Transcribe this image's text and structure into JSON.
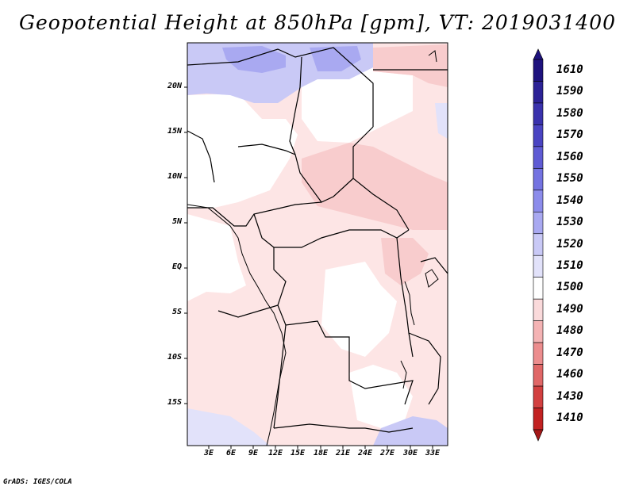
{
  "title": "Geopotential Height at 850hPa [gpm], VT: 2019031400",
  "footer": "GrADS: IGES/COLA",
  "map": {
    "lat_labels": [
      "20N",
      "15N",
      "10N",
      "5N",
      "EQ",
      "5S",
      "10S",
      "15S"
    ],
    "lon_labels": [
      "3E",
      "6E",
      "9E",
      "12E",
      "15E",
      "18E",
      "21E",
      "24E",
      "27E",
      "30E",
      "33E"
    ]
  },
  "colorbar": {
    "levels": [
      "1610",
      "1590",
      "1580",
      "1570",
      "1560",
      "1550",
      "1540",
      "1530",
      "1520",
      "1510",
      "1500",
      "1490",
      "1480",
      "1470",
      "1460",
      "1430",
      "1410"
    ],
    "colors": {
      "top_arrow": "#1e127e",
      "bands": [
        "#1e127e",
        "#2c2296",
        "#3a32ad",
        "#4a44c2",
        "#5f5bd4",
        "#7473e1",
        "#8c8ceb",
        "#a9a9f1",
        "#c9c9f6",
        "#e2e2fa",
        "#ffffff",
        "#fadadb",
        "#f4b3b4",
        "#ec8d8e",
        "#e06767",
        "#d24040",
        "#c22222"
      ],
      "bottom_arrow": "#a51818"
    }
  },
  "fills": {
    "blue_strong": "#a9a9f1",
    "blue_light": "#c9c9f6",
    "blue_pale": "#e2e2fa",
    "pink_pale": "#fde5e5",
    "pink": "#fadadb",
    "pink_mid": "#f8cccd"
  }
}
